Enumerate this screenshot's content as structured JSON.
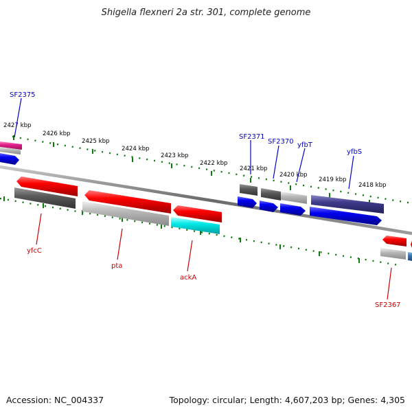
{
  "map": {
    "title": "Shigella flexneri 2a str. 301, complete genome",
    "accession": "Accession: NC_004337",
    "summary": "Topology: circular; Length: 4,607,203 bp; Genes: 4,305"
  },
  "scale": {
    "tick_labels": [
      "2427 kbp",
      "2426 kbp",
      "2425 kbp",
      "2424 kbp",
      "2423 kbp",
      "2422 kbp",
      "2421 kbp",
      "2420 kbp",
      "2419 kbp",
      "2418 kbp"
    ]
  },
  "genes": {
    "labeled": [
      {
        "name": "SF2375",
        "strand": "forward",
        "color": "#0000c8"
      },
      {
        "name": "SF2371",
        "strand": "forward",
        "color": "#0000c8"
      },
      {
        "name": "SF2370",
        "strand": "forward",
        "color": "#0000c8"
      },
      {
        "name": "yfbT",
        "strand": "forward",
        "color": "#0000c8"
      },
      {
        "name": "yfbS",
        "strand": "forward",
        "color": "#0000c8"
      },
      {
        "name": "yfcC",
        "strand": "reverse",
        "color": "#cc0000"
      },
      {
        "name": "pta",
        "strand": "reverse",
        "color": "#cc0000"
      },
      {
        "name": "ackA",
        "strand": "reverse",
        "color": "#cc0000"
      },
      {
        "name": "SF2367",
        "strand": "reverse",
        "color": "#cc0000"
      }
    ]
  },
  "colors": {
    "backbone": "#7a7a7a",
    "tick": "#0a7a0a",
    "forward_feature": "#0000ff",
    "reverse_feature": "#ff0000",
    "cds_grey": "#9a9a9a",
    "cds_dark": "#5a5a5a",
    "cds_purple": "#3e3a8a",
    "cds_cyan": "#00d8d8",
    "cds_pink": "#e0208a",
    "cds_steel": "#3a78b0"
  }
}
